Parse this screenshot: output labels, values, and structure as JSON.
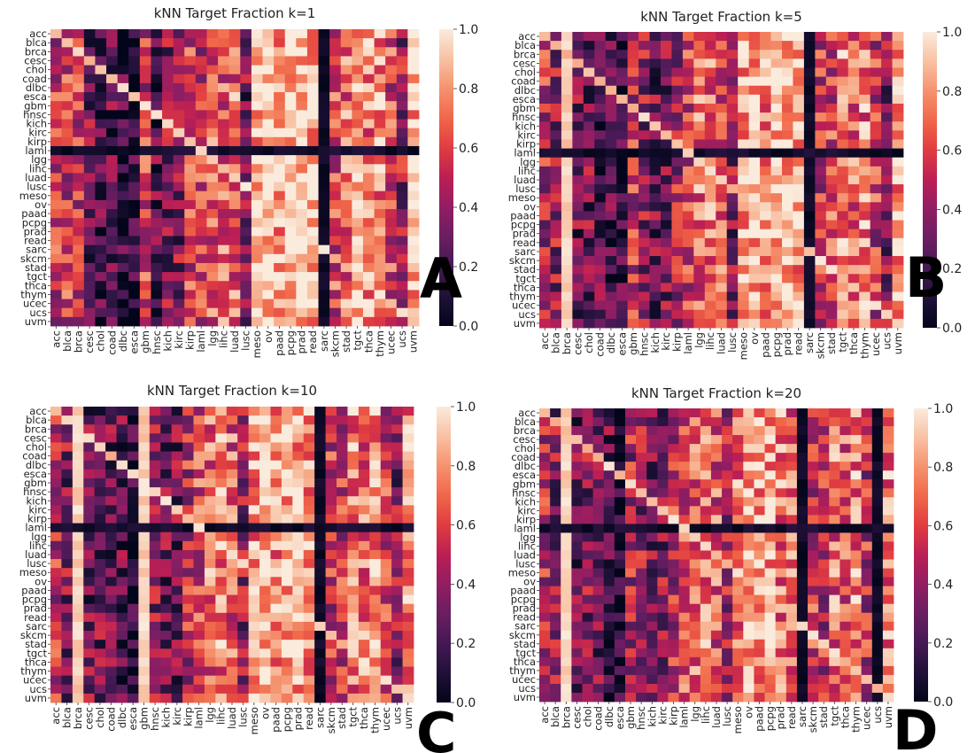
{
  "chart_data": [
    {
      "type": "heatmap",
      "panel_letter": "A",
      "title": "kNN Target Fraction k=1",
      "rows": [
        "acc",
        "blca",
        "brca",
        "cesc",
        "chol",
        "coad",
        "dlbc",
        "esca",
        "gbm",
        "hnsc",
        "kich",
        "kirc",
        "kirp",
        "laml",
        "lgg",
        "lihc",
        "luad",
        "lusc",
        "meso",
        "ov",
        "paad",
        "pcpg",
        "prad",
        "read",
        "sarc",
        "skcm",
        "stad",
        "tgct",
        "thca",
        "thym",
        "ucec",
        "ucs",
        "uvm"
      ],
      "columns": [
        "acc",
        "blca",
        "brca",
        "cesc",
        "chol",
        "coad",
        "dlbc",
        "esca",
        "gbm",
        "hnsc",
        "kich",
        "kirc",
        "kirp",
        "laml",
        "lgg",
        "lihc",
        "luad",
        "lusc",
        "meso",
        "ov",
        "paad",
        "pcpg",
        "prad",
        "read",
        "sarc",
        "skcm",
        "stad",
        "tgct",
        "thca",
        "thym",
        "ucec",
        "ucs",
        "uvm"
      ],
      "colorbar": {
        "min": 0.0,
        "max": 1.0,
        "ticks": [
          "0.0",
          "0.2",
          "0.4",
          "0.6",
          "0.8",
          "1.0"
        ]
      },
      "column_profile": [
        0.55,
        0.55,
        0.55,
        0.3,
        0.2,
        0.25,
        0.15,
        0.1,
        0.55,
        0.25,
        0.35,
        0.35,
        0.55,
        0.55,
        0.65,
        0.65,
        0.7,
        0.3,
        0.9,
        0.95,
        0.85,
        0.95,
        0.95,
        0.9,
        0.05,
        0.6,
        0.7,
        0.9,
        0.75,
        0.75,
        0.6,
        0.4,
        0.9
      ],
      "bright_columns": [],
      "dark_columns": [
        "sarc"
      ],
      "dark_row": "laml",
      "seed": 11
    },
    {
      "type": "heatmap",
      "panel_letter": "B",
      "title": "kNN Target Fraction k=5",
      "rows": [
        "acc",
        "blca",
        "brca",
        "cesc",
        "chol",
        "coad",
        "dlbc",
        "esca",
        "gbm",
        "hnsc",
        "kich",
        "kirc",
        "kirp",
        "laml",
        "lgg",
        "lihc",
        "luad",
        "lusc",
        "meso",
        "ov",
        "paad",
        "pcpg",
        "prad",
        "read",
        "sarc",
        "skcm",
        "stad",
        "tgct",
        "thca",
        "thym",
        "ucec",
        "ucs",
        "uvm"
      ],
      "columns": [
        "acc",
        "blca",
        "brca",
        "cesc",
        "chol",
        "coad",
        "dlbc",
        "esca",
        "gbm",
        "hnsc",
        "kich",
        "kirc",
        "kirp",
        "laml",
        "lgg",
        "lihc",
        "luad",
        "lusc",
        "meso",
        "ov",
        "paad",
        "pcpg",
        "prad",
        "read",
        "sarc",
        "skcm",
        "stad",
        "tgct",
        "thca",
        "thym",
        "ucec",
        "ucs",
        "uvm"
      ],
      "colorbar": {
        "min": 0.0,
        "max": 1.0,
        "ticks": [
          "0.0",
          "0.2",
          "0.4",
          "0.6",
          "0.8",
          "1.0"
        ]
      },
      "column_profile": [
        0.5,
        0.4,
        0.9,
        0.3,
        0.3,
        0.25,
        0.2,
        0.15,
        0.55,
        0.4,
        0.3,
        0.3,
        0.45,
        0.55,
        0.7,
        0.7,
        0.65,
        0.35,
        0.85,
        0.9,
        0.8,
        0.9,
        0.9,
        0.85,
        0.05,
        0.55,
        0.6,
        0.8,
        0.7,
        0.75,
        0.55,
        0.35,
        0.85
      ],
      "bright_columns": [
        "brca"
      ],
      "dark_columns": [
        "sarc"
      ],
      "dark_row": "laml",
      "seed": 23
    },
    {
      "type": "heatmap",
      "panel_letter": "C",
      "title": "kNN Target Fraction k=10",
      "rows": [
        "acc",
        "blca",
        "brca",
        "cesc",
        "chol",
        "coad",
        "dlbc",
        "esca",
        "gbm",
        "hnsc",
        "kich",
        "kirc",
        "kirp",
        "laml",
        "lgg",
        "lihc",
        "luad",
        "lusc",
        "meso",
        "ov",
        "paad",
        "pcpg",
        "prad",
        "read",
        "sarc",
        "skcm",
        "stad",
        "tgct",
        "thca",
        "thym",
        "ucec",
        "ucs",
        "uvm"
      ],
      "columns": [
        "acc",
        "blca",
        "brca",
        "cesc",
        "chol",
        "coad",
        "dlbc",
        "esca",
        "gbm",
        "hnsc",
        "kich",
        "kirc",
        "kirp",
        "laml",
        "lgg",
        "lihc",
        "luad",
        "lusc",
        "meso",
        "ov",
        "paad",
        "pcpg",
        "prad",
        "read",
        "sarc",
        "skcm",
        "stad",
        "tgct",
        "thca",
        "thym",
        "ucec",
        "ucs",
        "uvm"
      ],
      "colorbar": {
        "min": 0.0,
        "max": 1.0,
        "ticks": [
          "0.0",
          "0.2",
          "0.4",
          "0.6",
          "0.8",
          "1.0"
        ]
      },
      "column_profile": [
        0.5,
        0.35,
        0.9,
        0.3,
        0.3,
        0.3,
        0.25,
        0.1,
        0.85,
        0.4,
        0.3,
        0.3,
        0.5,
        0.6,
        0.7,
        0.75,
        0.65,
        0.4,
        0.8,
        0.9,
        0.8,
        0.9,
        0.85,
        0.8,
        0.05,
        0.55,
        0.55,
        0.75,
        0.7,
        0.8,
        0.55,
        0.35,
        0.8
      ],
      "bright_columns": [
        "brca",
        "gbm"
      ],
      "dark_columns": [
        "sarc"
      ],
      "dark_row": "laml",
      "seed": 37
    },
    {
      "type": "heatmap",
      "panel_letter": "D",
      "title": "kNN Target Fraction k=20",
      "rows": [
        "acc",
        "blca",
        "brca",
        "cesc",
        "chol",
        "coad",
        "dlbc",
        "esca",
        "gbm",
        "hnsc",
        "kich",
        "kirc",
        "kirp",
        "laml",
        "lgg",
        "lihc",
        "luad",
        "lusc",
        "meso",
        "ov",
        "paad",
        "pcpg",
        "prad",
        "read",
        "sarc",
        "skcm",
        "stad",
        "tgct",
        "thca",
        "thym",
        "ucec",
        "ucs",
        "uvm"
      ],
      "columns": [
        "acc",
        "blca",
        "brca",
        "cesc",
        "chol",
        "coad",
        "dlbc",
        "esca",
        "gbm",
        "hnsc",
        "kich",
        "kirc",
        "kirp",
        "laml",
        "lgg",
        "lihc",
        "luad",
        "lusc",
        "meso",
        "ov",
        "paad",
        "pcpg",
        "prad",
        "read",
        "sarc",
        "skcm",
        "stad",
        "tgct",
        "thca",
        "thym",
        "ucec",
        "ucs",
        "uvm"
      ],
      "colorbar": {
        "min": 0.0,
        "max": 1.0,
        "ticks": [
          "0.0",
          "0.2",
          "0.4",
          "0.6",
          "0.8",
          "1.0"
        ]
      },
      "column_profile": [
        0.5,
        0.35,
        0.8,
        0.3,
        0.35,
        0.3,
        0.25,
        0.1,
        0.45,
        0.4,
        0.3,
        0.35,
        0.5,
        0.6,
        0.7,
        0.75,
        0.65,
        0.45,
        0.75,
        0.85,
        0.8,
        0.85,
        0.75,
        0.7,
        0.05,
        0.55,
        0.5,
        0.7,
        0.65,
        0.75,
        0.5,
        0.05,
        0.75
      ],
      "bright_columns": [
        "brca"
      ],
      "dark_columns": [
        "sarc",
        "ucs"
      ],
      "dark_row": "laml",
      "seed": 53
    }
  ]
}
